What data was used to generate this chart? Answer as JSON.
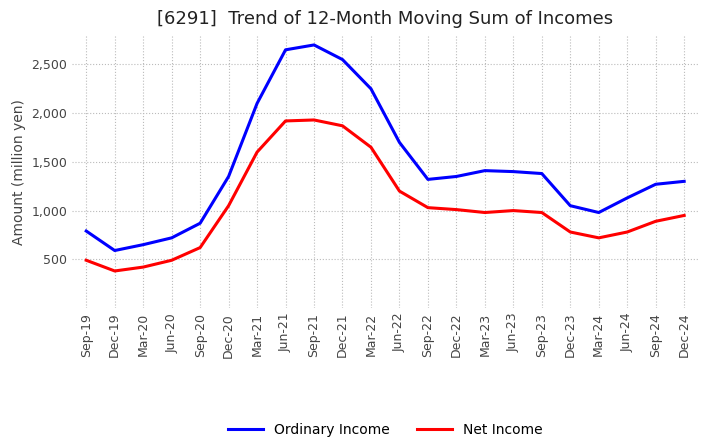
{
  "title": "[6291]  Trend of 12-Month Moving Sum of Incomes",
  "ylabel": "Amount (million yen)",
  "background_color": "#ffffff",
  "grid_color": "#bbbbbb",
  "x_labels": [
    "Sep-19",
    "Dec-19",
    "Mar-20",
    "Jun-20",
    "Sep-20",
    "Dec-20",
    "Mar-21",
    "Jun-21",
    "Sep-21",
    "Dec-21",
    "Mar-22",
    "Jun-22",
    "Sep-22",
    "Dec-22",
    "Mar-23",
    "Jun-23",
    "Sep-23",
    "Dec-23",
    "Mar-24",
    "Jun-24",
    "Sep-24",
    "Dec-24"
  ],
  "ordinary_income": [
    790,
    590,
    650,
    720,
    870,
    1350,
    2100,
    2650,
    2700,
    2550,
    2250,
    1700,
    1320,
    1350,
    1410,
    1400,
    1380,
    1050,
    980,
    1130,
    1270,
    1300
  ],
  "net_income": [
    490,
    380,
    420,
    490,
    620,
    1050,
    1600,
    1920,
    1930,
    1870,
    1650,
    1200,
    1030,
    1010,
    980,
    1000,
    980,
    780,
    720,
    780,
    890,
    950
  ],
  "ordinary_color": "#0000ff",
  "net_color": "#ff0000",
  "ylim_min": 0,
  "ylim_max": 2800,
  "yticks": [
    500,
    1000,
    1500,
    2000,
    2500
  ],
  "line_width": 2.2,
  "title_fontsize": 13,
  "label_fontsize": 10,
  "tick_fontsize": 9,
  "legend_fontsize": 10
}
